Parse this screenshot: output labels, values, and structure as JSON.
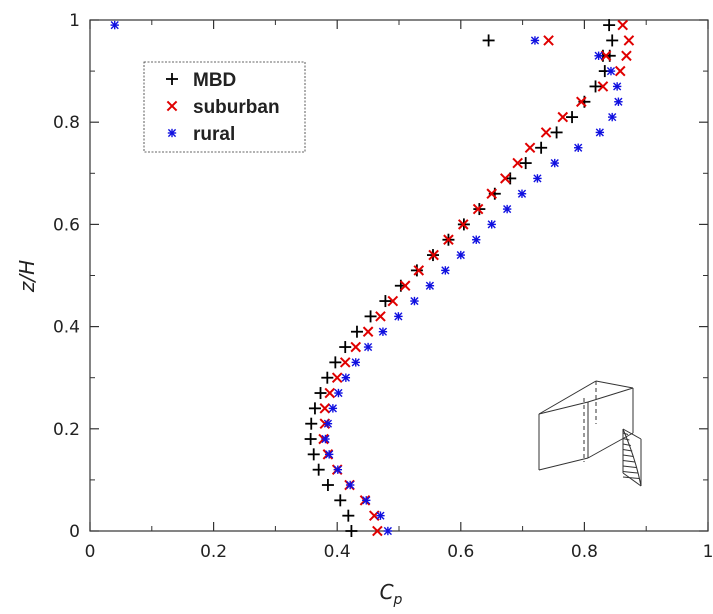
{
  "chart_data": {
    "type": "scatter",
    "xlabel_main": "C",
    "xlabel_sub": "p",
    "ylabel": "z/H",
    "xlim": [
      0,
      1
    ],
    "ylim": [
      0,
      1
    ],
    "x_ticks": [
      0,
      0.2,
      0.4,
      0.6,
      0.8,
      1
    ],
    "y_ticks": [
      0,
      0.2,
      0.4,
      0.6,
      0.8,
      1
    ],
    "x_tick_labels": [
      "0",
      "0.2",
      "0.4",
      "0.6",
      "0.8",
      "1"
    ],
    "y_tick_labels": [
      "0",
      "0.2",
      "0.4",
      "0.6",
      "0.8",
      "1"
    ],
    "grid": false,
    "legend_position": "top-left",
    "colors": {
      "MBD": "#000000",
      "suburban": "#e00000",
      "rural": "#1010e0"
    },
    "series": [
      {
        "name": "MBD",
        "marker": "plus",
        "x": [
          0.423,
          0.418,
          0.405,
          0.385,
          0.37,
          0.362,
          0.357,
          0.358,
          0.364,
          0.373,
          0.384,
          0.397,
          0.413,
          0.432,
          0.454,
          0.478,
          0.503,
          0.529,
          0.555,
          0.58,
          0.605,
          0.63,
          0.655,
          0.68,
          0.705,
          0.73,
          0.755,
          0.78,
          0.8,
          0.818,
          0.833,
          0.841,
          0.845,
          0.84,
          0.83,
          0.645
        ],
        "y": [
          0.0,
          0.03,
          0.06,
          0.09,
          0.12,
          0.15,
          0.18,
          0.21,
          0.24,
          0.27,
          0.3,
          0.33,
          0.36,
          0.39,
          0.42,
          0.45,
          0.48,
          0.51,
          0.54,
          0.57,
          0.6,
          0.63,
          0.66,
          0.69,
          0.72,
          0.75,
          0.78,
          0.81,
          0.84,
          0.87,
          0.9,
          0.93,
          0.96,
          0.99,
          0.93,
          0.96
        ]
      },
      {
        "name": "suburban",
        "marker": "cross",
        "x": [
          0.465,
          0.46,
          0.445,
          0.42,
          0.4,
          0.385,
          0.378,
          0.38,
          0.38,
          0.388,
          0.4,
          0.413,
          0.43,
          0.45,
          0.47,
          0.49,
          0.51,
          0.532,
          0.556,
          0.58,
          0.604,
          0.628,
          0.65,
          0.672,
          0.692,
          0.712,
          0.738,
          0.765,
          0.795,
          0.83,
          0.858,
          0.868,
          0.872,
          0.862,
          0.835,
          0.742
        ],
        "y": [
          0.0,
          0.03,
          0.06,
          0.09,
          0.12,
          0.15,
          0.18,
          0.21,
          0.24,
          0.27,
          0.3,
          0.33,
          0.36,
          0.39,
          0.42,
          0.45,
          0.48,
          0.51,
          0.54,
          0.57,
          0.6,
          0.63,
          0.66,
          0.69,
          0.72,
          0.75,
          0.78,
          0.81,
          0.84,
          0.87,
          0.9,
          0.93,
          0.96,
          0.99,
          0.93,
          0.96
        ]
      },
      {
        "name": "rural",
        "marker": "asterisk",
        "x": [
          0.482,
          0.47,
          0.447,
          0.421,
          0.401,
          0.387,
          0.381,
          0.385,
          0.393,
          0.402,
          0.414,
          0.43,
          0.45,
          0.474,
          0.499,
          0.525,
          0.55,
          0.575,
          0.6,
          0.625,
          0.65,
          0.675,
          0.699,
          0.724,
          0.752,
          0.79,
          0.825,
          0.845,
          0.855,
          0.853,
          0.843,
          0.823,
          0.72,
          0.04
        ],
        "y": [
          0.0,
          0.03,
          0.06,
          0.09,
          0.12,
          0.15,
          0.18,
          0.21,
          0.24,
          0.27,
          0.3,
          0.33,
          0.36,
          0.39,
          0.42,
          0.45,
          0.48,
          0.51,
          0.54,
          0.57,
          0.6,
          0.63,
          0.66,
          0.69,
          0.72,
          0.75,
          0.78,
          0.81,
          0.84,
          0.87,
          0.9,
          0.93,
          0.96,
          0.99
        ]
      }
    ]
  }
}
